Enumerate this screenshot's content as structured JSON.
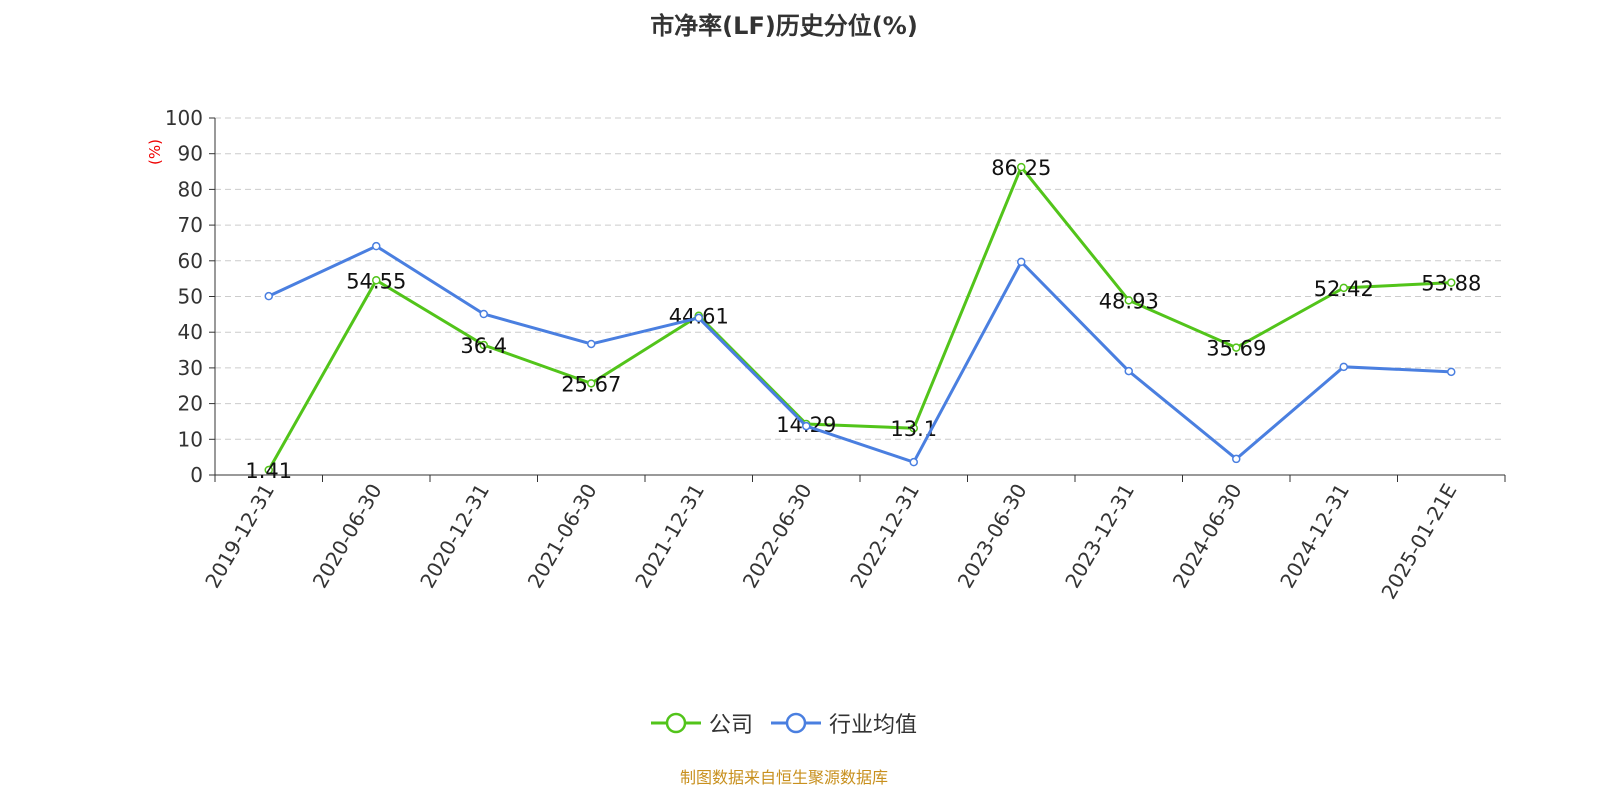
{
  "chart_data": {
    "type": "line",
    "title": "市净率(LF)历史分位(%)",
    "ylabel": "(%)",
    "xlabel": "",
    "ylim": [
      0,
      100
    ],
    "yticks": [
      0,
      10,
      20,
      30,
      40,
      50,
      60,
      70,
      80,
      90,
      100
    ],
    "grid": "horizontal dashed",
    "legend_position": "bottom",
    "categories": [
      "2019-12-31",
      "2020-06-30",
      "2020-12-31",
      "2021-06-30",
      "2021-12-31",
      "2022-06-30",
      "2022-12-31",
      "2023-06-30",
      "2023-12-31",
      "2024-06-30",
      "2024-12-31",
      "2025-01-21E"
    ],
    "series": [
      {
        "name": "公司",
        "color": "#52c41a",
        "labels": true,
        "values": [
          1.41,
          54.55,
          36.4,
          25.67,
          44.61,
          14.29,
          13.1,
          86.25,
          48.93,
          35.69,
          52.42,
          53.88
        ]
      },
      {
        "name": "行业均值",
        "color": "#4a7fe0",
        "labels": false,
        "values": [
          50.1,
          64.1,
          45.1,
          36.7,
          44.0,
          13.7,
          3.6,
          59.7,
          29.1,
          4.5,
          30.3,
          28.9
        ]
      }
    ]
  },
  "source": "制图数据来自恒生聚源数据库"
}
